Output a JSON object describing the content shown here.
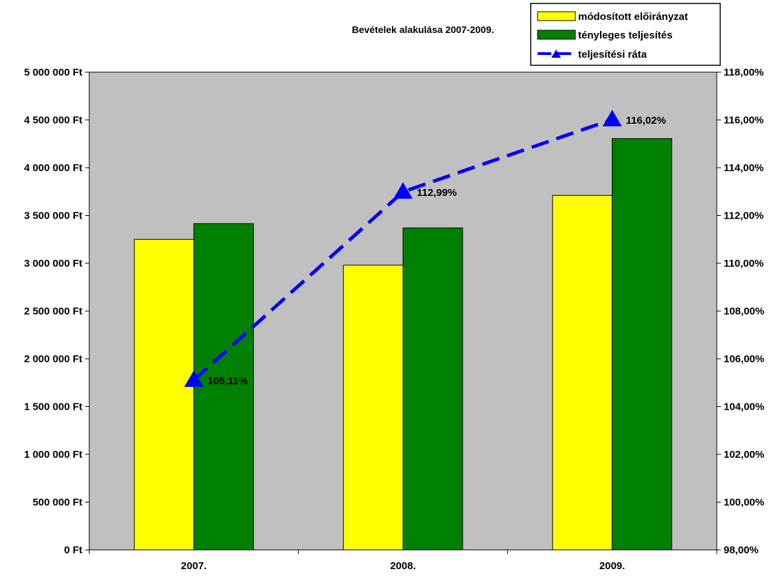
{
  "chart_data": {
    "type": "bar",
    "title": "Bevételek alakulása 2007-2009.",
    "categories": [
      "2007.",
      "2008.",
      "2009."
    ],
    "series": [
      {
        "name": "módosított előirányzat",
        "type": "bar",
        "axis": "left",
        "color": "#FFFF00",
        "values": [
          3250000,
          2980000,
          3710000
        ]
      },
      {
        "name": "tényleges teljesítés",
        "type": "bar",
        "axis": "left",
        "color": "#008000",
        "values": [
          3415000,
          3370000,
          4305000
        ]
      },
      {
        "name": "teljesítési ráta",
        "type": "line",
        "axis": "right",
        "color": "#0000FF",
        "line_style": "dashed",
        "marker": "triangle",
        "values": [
          105.11,
          112.99,
          116.02
        ],
        "labels": [
          "105,11%",
          "112,99%",
          "116,02%"
        ]
      }
    ],
    "left_axis": {
      "ylim": [
        0,
        5000000
      ],
      "ticks": [
        "0 Ft",
        "500 000 Ft",
        "1 000 000 Ft",
        "1 500 000 Ft",
        "2 000 000 Ft",
        "2 500 000 Ft",
        "3 000 000 Ft",
        "3 500 000 Ft",
        "4 000 000 Ft",
        "4 500 000 Ft",
        "5 000 000 Ft"
      ]
    },
    "right_axis": {
      "ylim": [
        98,
        118
      ],
      "ticks": [
        "98,00%",
        "100,00%",
        "102,00%",
        "104,00%",
        "106,00%",
        "108,00%",
        "110,00%",
        "112,00%",
        "114,00%",
        "116,00%",
        "118,00%"
      ]
    },
    "plot_background": "#C0C0C0",
    "grid": false,
    "legend_position": "top-right"
  }
}
